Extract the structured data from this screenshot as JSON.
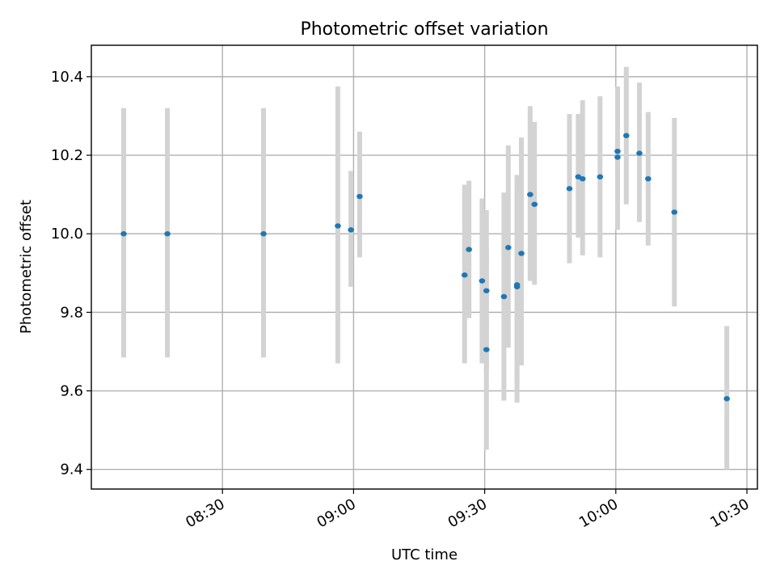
{
  "chart_data": {
    "type": "scatter",
    "title": "Photometric offset variation",
    "xlabel": "UTC time",
    "ylabel": "Photometric offset",
    "x_start": "08:00",
    "xlim_minutes": [
      0.0,
      152.4
    ],
    "ylim": [
      9.35,
      10.48
    ],
    "xticks": [
      {
        "minute": 30,
        "label": "08:30"
      },
      {
        "minute": 60,
        "label": "09:00"
      },
      {
        "minute": 90,
        "label": "09:30"
      },
      {
        "minute": 120,
        "label": "10:00"
      },
      {
        "minute": 150,
        "label": "10:30"
      }
    ],
    "yticks": [
      9.4,
      9.6,
      9.8,
      10.0,
      10.2,
      10.4
    ],
    "ytick_labels": [
      "9.4",
      "9.6",
      "9.8",
      "10.0",
      "10.2",
      "10.4"
    ],
    "grid": true,
    "colors": {
      "point": "#1f77b4",
      "errorbar": "#d3d3d3"
    },
    "points": [
      {
        "time": "08:07",
        "y": 10.0,
        "low": 9.685,
        "high": 10.32
      },
      {
        "time": "08:17",
        "y": 10.0,
        "low": 9.685,
        "high": 10.32
      },
      {
        "time": "08:39",
        "y": 10.0,
        "low": 9.685,
        "high": 10.32
      },
      {
        "time": "08:56",
        "y": 10.02,
        "low": 9.67,
        "high": 10.375
      },
      {
        "time": "08:59",
        "y": 10.01,
        "low": 9.865,
        "high": 10.16
      },
      {
        "time": "09:01",
        "y": 10.095,
        "low": 9.94,
        "high": 10.26
      },
      {
        "time": "09:25",
        "y": 9.895,
        "low": 9.67,
        "high": 10.125
      },
      {
        "time": "09:26",
        "y": 9.96,
        "low": 9.785,
        "high": 10.135
      },
      {
        "time": "09:29",
        "y": 9.88,
        "low": 9.67,
        "high": 10.09
      },
      {
        "time": "09:30",
        "y": 9.855,
        "low": 9.65,
        "high": 10.06
      },
      {
        "time": "09:30",
        "y": 9.705,
        "low": 9.45,
        "high": 9.97
      },
      {
        "time": "09:34",
        "y": 9.84,
        "low": 9.575,
        "high": 10.105
      },
      {
        "time": "09:35",
        "y": 9.965,
        "low": 9.71,
        "high": 10.225
      },
      {
        "time": "09:37",
        "y": 9.87,
        "low": 9.62,
        "high": 10.12
      },
      {
        "time": "09:37",
        "y": 9.865,
        "low": 9.57,
        "high": 10.15
      },
      {
        "time": "09:38",
        "y": 9.95,
        "low": 9.665,
        "high": 10.245
      },
      {
        "time": "09:40",
        "y": 10.1,
        "low": 9.88,
        "high": 10.325
      },
      {
        "time": "09:41",
        "y": 10.075,
        "low": 9.87,
        "high": 10.285
      },
      {
        "time": "09:49",
        "y": 10.115,
        "low": 9.925,
        "high": 10.305
      },
      {
        "time": "09:51",
        "y": 10.145,
        "low": 9.99,
        "high": 10.305
      },
      {
        "time": "09:52",
        "y": 10.14,
        "low": 9.945,
        "high": 10.34
      },
      {
        "time": "09:56",
        "y": 10.145,
        "low": 9.94,
        "high": 10.35
      },
      {
        "time": "10:00",
        "y": 10.21,
        "low": 10.05,
        "high": 10.375
      },
      {
        "time": "10:00",
        "y": 10.195,
        "low": 10.01,
        "high": 10.37
      },
      {
        "time": "10:02",
        "y": 10.25,
        "low": 10.075,
        "high": 10.425
      },
      {
        "time": "10:05",
        "y": 10.205,
        "low": 10.03,
        "high": 10.385
      },
      {
        "time": "10:07",
        "y": 10.14,
        "low": 9.97,
        "high": 10.31
      },
      {
        "time": "10:13",
        "y": 10.055,
        "low": 9.815,
        "high": 10.295
      },
      {
        "time": "10:25",
        "y": 9.58,
        "low": 9.4,
        "high": 9.765
      }
    ]
  }
}
